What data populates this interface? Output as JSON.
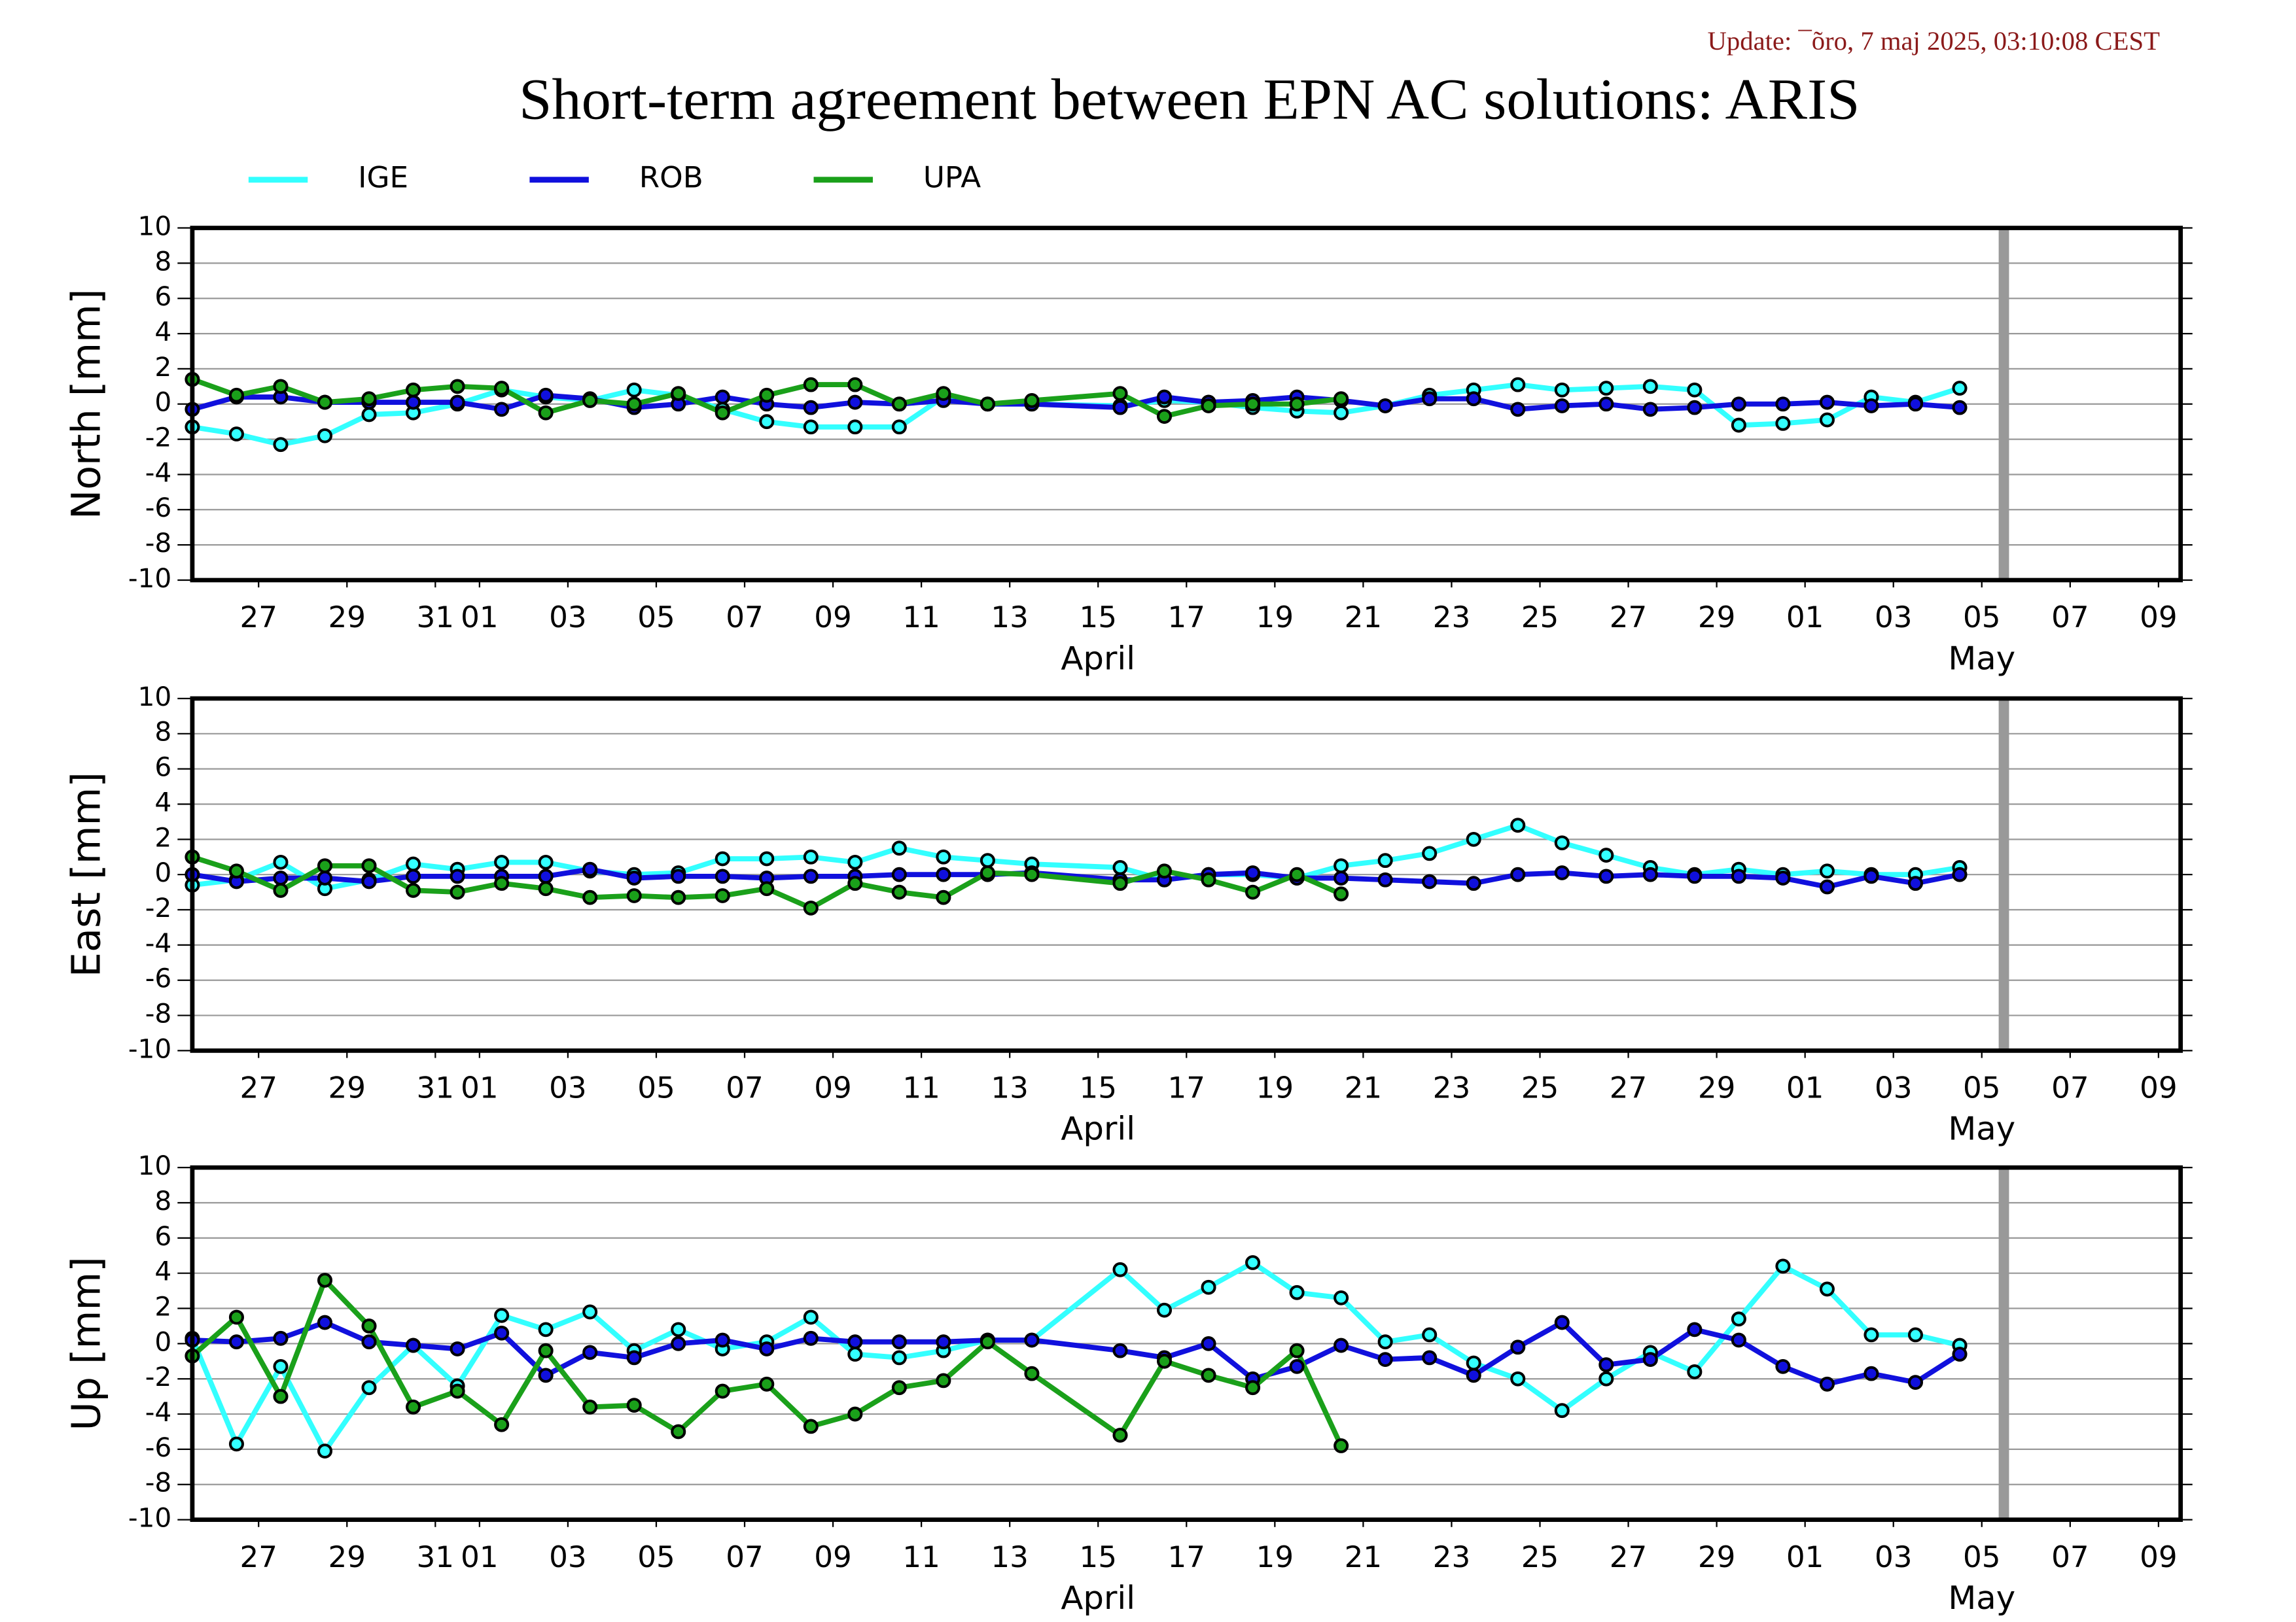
{
  "update": "Update: ¯õro, 7 maj 2025, 03:10:08 CEST",
  "title": "Short-term agreement between EPN AC solutions: ARIS",
  "chart_data": [
    {
      "type": "line",
      "y_label": "North [mm]",
      "x": [
        "03-26",
        "03-27",
        "03-28",
        "03-29",
        "03-30",
        "03-31",
        "04-01",
        "04-02",
        "04-03",
        "04-04",
        "04-05",
        "04-06",
        "04-07",
        "04-08",
        "04-09",
        "04-10",
        "04-11",
        "04-12",
        "04-13",
        "04-14",
        "04-16",
        "04-17",
        "04-18",
        "04-19",
        "04-20",
        "04-21",
        "04-22",
        "04-23",
        "04-24",
        "04-25",
        "04-26",
        "04-27",
        "04-28",
        "04-29",
        "04-30",
        "05-01",
        "05-02",
        "05-03",
        "05-04",
        "05-05"
      ],
      "series": [
        {
          "name": "IGE",
          "color": "#33ffff",
          "values": [
            -1.3,
            -1.7,
            -2.3,
            -1.8,
            -0.6,
            -0.5,
            0.0,
            0.8,
            0.4,
            0.2,
            0.8,
            0.5,
            -0.3,
            -1.0,
            -1.3,
            -1.3,
            -1.3,
            0.4,
            0.0,
            0.0,
            -0.1,
            0.2,
            0.1,
            -0.2,
            -0.4,
            -0.5,
            -0.1,
            0.5,
            0.8,
            1.1,
            0.8,
            0.9,
            1.0,
            0.8,
            -1.2,
            -1.1,
            -0.9,
            0.4,
            0.1,
            0.9
          ]
        },
        {
          "name": "ROB",
          "color": "#1010dd",
          "values": [
            -0.3,
            0.4,
            0.4,
            0.1,
            0.1,
            0.1,
            0.1,
            -0.3,
            0.5,
            0.3,
            -0.2,
            0.0,
            0.4,
            0.0,
            -0.2,
            0.1,
            0.0,
            0.2,
            0.0,
            0.0,
            -0.2,
            0.4,
            0.1,
            0.2,
            0.4,
            0.2,
            -0.1,
            0.3,
            0.3,
            -0.3,
            -0.1,
            0.0,
            -0.3,
            -0.2,
            0.0,
            0.0,
            0.1,
            -0.1,
            0.0,
            -0.2
          ]
        },
        {
          "name": "UPA",
          "color": "#1aa01a",
          "values": [
            1.4,
            0.5,
            1.0,
            0.1,
            0.3,
            0.8,
            1.0,
            0.9,
            -0.5,
            0.2,
            0.0,
            0.6,
            -0.5,
            0.5,
            1.1,
            1.1,
            0.0,
            0.6,
            0.0,
            0.2,
            0.6,
            -0.7,
            -0.1,
            0.0,
            0.0,
            0.3,
            null,
            null,
            null,
            null,
            null,
            null,
            null,
            null,
            null,
            null,
            null,
            null,
            null,
            null
          ]
        }
      ],
      "xlim": [
        "03-26",
        "05-10"
      ],
      "xticks": [
        {
          "value": "03-27",
          "label": "27"
        },
        {
          "value": "03-29",
          "label": "29"
        },
        {
          "value": "03-31",
          "label": "31"
        },
        {
          "value": "04-01",
          "label": "01"
        },
        {
          "value": "04-03",
          "label": "03"
        },
        {
          "value": "04-05",
          "label": "05"
        },
        {
          "value": "04-07",
          "label": "07"
        },
        {
          "value": "04-09",
          "label": "09"
        },
        {
          "value": "04-11",
          "label": "11"
        },
        {
          "value": "04-13",
          "label": "13"
        },
        {
          "value": "04-15",
          "label": "15"
        },
        {
          "value": "04-17",
          "label": "17"
        },
        {
          "value": "04-19",
          "label": "19"
        },
        {
          "value": "04-21",
          "label": "21"
        },
        {
          "value": "04-23",
          "label": "23"
        },
        {
          "value": "04-25",
          "label": "25"
        },
        {
          "value": "04-27",
          "label": "27"
        },
        {
          "value": "04-29",
          "label": "29"
        },
        {
          "value": "05-01",
          "label": "01"
        },
        {
          "value": "05-03",
          "label": "03"
        },
        {
          "value": "05-05",
          "label": "05"
        },
        {
          "value": "05-07",
          "label": "07"
        },
        {
          "value": "05-09",
          "label": "09"
        }
      ],
      "month_labels": [
        {
          "value": "04-15",
          "label": "April"
        },
        {
          "value": "05-05",
          "label": "May"
        }
      ],
      "marker_x": "05-06",
      "ylim": [
        -10,
        10
      ],
      "yticks": [
        -10,
        -8,
        -6,
        -4,
        -2,
        0,
        2,
        4,
        6,
        8,
        10
      ],
      "grid": true
    },
    {
      "type": "line",
      "y_label": "East [mm]",
      "x": [
        "03-26",
        "03-27",
        "03-28",
        "03-29",
        "03-30",
        "03-31",
        "04-01",
        "04-02",
        "04-03",
        "04-04",
        "04-05",
        "04-06",
        "04-07",
        "04-08",
        "04-09",
        "04-10",
        "04-11",
        "04-12",
        "04-13",
        "04-14",
        "04-16",
        "04-17",
        "04-18",
        "04-19",
        "04-20",
        "04-21",
        "04-22",
        "04-23",
        "04-24",
        "04-25",
        "04-26",
        "04-27",
        "04-28",
        "04-29",
        "04-30",
        "05-01",
        "05-02",
        "05-03",
        "05-04",
        "05-05"
      ],
      "series": [
        {
          "name": "IGE",
          "color": "#33ffff",
          "values": [
            -0.6,
            -0.3,
            0.7,
            -0.8,
            -0.3,
            0.6,
            0.3,
            0.7,
            0.7,
            0.2,
            0.0,
            0.1,
            0.9,
            0.9,
            1.0,
            0.7,
            1.5,
            1.0,
            0.8,
            0.6,
            0.4,
            -0.3,
            0.0,
            0.0,
            -0.2,
            0.5,
            0.8,
            1.2,
            2.0,
            2.8,
            1.8,
            1.1,
            0.4,
            0.0,
            0.3,
            0.0,
            0.2,
            0.0,
            0.0,
            0.4
          ]
        },
        {
          "name": "ROB",
          "color": "#1010dd",
          "values": [
            0.0,
            -0.4,
            -0.2,
            -0.2,
            -0.4,
            -0.1,
            -0.1,
            -0.1,
            -0.1,
            0.3,
            -0.2,
            -0.1,
            -0.1,
            -0.2,
            -0.1,
            -0.1,
            0.0,
            0.0,
            0.0,
            0.1,
            -0.3,
            -0.3,
            0.0,
            0.1,
            -0.2,
            -0.2,
            -0.3,
            -0.4,
            -0.5,
            0.0,
            0.1,
            -0.1,
            0.0,
            -0.1,
            -0.1,
            -0.2,
            -0.7,
            -0.1,
            -0.5,
            0.0
          ]
        },
        {
          "name": "UPA",
          "color": "#1aa01a",
          "values": [
            1.0,
            0.2,
            -0.9,
            0.5,
            0.5,
            -0.9,
            -1.0,
            -0.5,
            -0.8,
            -1.3,
            -1.2,
            -1.3,
            -1.2,
            -0.8,
            -1.9,
            -0.5,
            -1.0,
            -1.3,
            0.1,
            0.0,
            -0.5,
            0.2,
            -0.3,
            -1.0,
            0.0,
            -1.1,
            null,
            null,
            null,
            null,
            null,
            null,
            null,
            null,
            null,
            null,
            null,
            null,
            null,
            null
          ]
        }
      ],
      "xlim": [
        "03-26",
        "05-10"
      ],
      "xticks": [
        {
          "value": "03-27",
          "label": "27"
        },
        {
          "value": "03-29",
          "label": "29"
        },
        {
          "value": "03-31",
          "label": "31"
        },
        {
          "value": "04-01",
          "label": "01"
        },
        {
          "value": "04-03",
          "label": "03"
        },
        {
          "value": "04-05",
          "label": "05"
        },
        {
          "value": "04-07",
          "label": "07"
        },
        {
          "value": "04-09",
          "label": "09"
        },
        {
          "value": "04-11",
          "label": "11"
        },
        {
          "value": "04-13",
          "label": "13"
        },
        {
          "value": "04-15",
          "label": "15"
        },
        {
          "value": "04-17",
          "label": "17"
        },
        {
          "value": "04-19",
          "label": "19"
        },
        {
          "value": "04-21",
          "label": "21"
        },
        {
          "value": "04-23",
          "label": "23"
        },
        {
          "value": "04-25",
          "label": "25"
        },
        {
          "value": "04-27",
          "label": "27"
        },
        {
          "value": "04-29",
          "label": "29"
        },
        {
          "value": "05-01",
          "label": "01"
        },
        {
          "value": "05-03",
          "label": "03"
        },
        {
          "value": "05-05",
          "label": "05"
        },
        {
          "value": "05-07",
          "label": "07"
        },
        {
          "value": "05-09",
          "label": "09"
        }
      ],
      "month_labels": [
        {
          "value": "04-15",
          "label": "April"
        },
        {
          "value": "05-05",
          "label": "May"
        }
      ],
      "marker_x": "05-06",
      "ylim": [
        -10,
        10
      ],
      "yticks": [
        -10,
        -8,
        -6,
        -4,
        -2,
        0,
        2,
        4,
        6,
        8,
        10
      ],
      "grid": true
    },
    {
      "type": "line",
      "y_label": "Up [mm]",
      "x": [
        "03-26",
        "03-27",
        "03-28",
        "03-29",
        "03-30",
        "03-31",
        "04-01",
        "04-02",
        "04-03",
        "04-04",
        "04-05",
        "04-06",
        "04-07",
        "04-08",
        "04-09",
        "04-10",
        "04-11",
        "04-12",
        "04-13",
        "04-14",
        "04-16",
        "04-17",
        "04-18",
        "04-19",
        "04-20",
        "04-21",
        "04-22",
        "04-23",
        "04-24",
        "04-25",
        "04-26",
        "04-27",
        "04-28",
        "04-29",
        "04-30",
        "05-01",
        "05-02",
        "05-03",
        "05-04",
        "05-05"
      ],
      "series": [
        {
          "name": "IGE",
          "color": "#33ffff",
          "values": [
            0.3,
            -5.7,
            -1.3,
            -6.1,
            -2.5,
            -0.1,
            -2.4,
            1.6,
            0.8,
            1.8,
            -0.4,
            0.8,
            -0.3,
            0.1,
            1.5,
            -0.6,
            -0.8,
            -0.4,
            0.2,
            0.2,
            4.2,
            1.9,
            3.2,
            4.6,
            2.9,
            2.6,
            0.1,
            0.5,
            -1.1,
            -2.0,
            -3.8,
            -2.0,
            -0.5,
            -1.6,
            1.4,
            4.4,
            3.1,
            0.5,
            0.5,
            -0.1
          ]
        },
        {
          "name": "ROB",
          "color": "#1010dd",
          "values": [
            0.2,
            0.1,
            0.3,
            1.2,
            0.1,
            -0.1,
            -0.3,
            0.6,
            -1.8,
            -0.5,
            -0.8,
            0.0,
            0.2,
            -0.3,
            0.3,
            0.1,
            0.1,
            0.1,
            0.2,
            0.2,
            -0.4,
            -0.8,
            0.0,
            -2.0,
            -1.3,
            -0.1,
            -0.9,
            -0.8,
            -1.8,
            -0.2,
            1.2,
            -1.2,
            -0.9,
            0.8,
            0.2,
            -1.3,
            -2.3,
            -1.7,
            -2.2,
            -0.6
          ]
        },
        {
          "name": "UPA",
          "color": "#1aa01a",
          "values": [
            -0.7,
            1.5,
            -3.0,
            3.6,
            1.0,
            -3.6,
            -2.7,
            -4.6,
            -0.4,
            -3.6,
            -3.5,
            -5.0,
            -2.7,
            -2.3,
            -4.7,
            -4.0,
            -2.5,
            -2.1,
            0.1,
            -1.7,
            -5.2,
            -1.0,
            -1.8,
            -2.5,
            -0.4,
            -5.8,
            null,
            null,
            null,
            null,
            null,
            null,
            null,
            null,
            null,
            null,
            null,
            null,
            null,
            null
          ]
        }
      ],
      "xlim": [
        "03-26",
        "05-10"
      ],
      "xticks": [
        {
          "value": "03-27",
          "label": "27"
        },
        {
          "value": "03-29",
          "label": "29"
        },
        {
          "value": "03-31",
          "label": "31"
        },
        {
          "value": "04-01",
          "label": "01"
        },
        {
          "value": "04-03",
          "label": "03"
        },
        {
          "value": "04-05",
          "label": "05"
        },
        {
          "value": "04-07",
          "label": "07"
        },
        {
          "value": "04-09",
          "label": "09"
        },
        {
          "value": "04-11",
          "label": "11"
        },
        {
          "value": "04-13",
          "label": "13"
        },
        {
          "value": "04-15",
          "label": "15"
        },
        {
          "value": "04-17",
          "label": "17"
        },
        {
          "value": "04-19",
          "label": "19"
        },
        {
          "value": "04-21",
          "label": "21"
        },
        {
          "value": "04-23",
          "label": "23"
        },
        {
          "value": "04-25",
          "label": "25"
        },
        {
          "value": "04-27",
          "label": "27"
        },
        {
          "value": "04-29",
          "label": "29"
        },
        {
          "value": "05-01",
          "label": "01"
        },
        {
          "value": "05-03",
          "label": "03"
        },
        {
          "value": "05-05",
          "label": "05"
        },
        {
          "value": "05-07",
          "label": "07"
        },
        {
          "value": "05-09",
          "label": "09"
        }
      ],
      "month_labels": [
        {
          "value": "04-15",
          "label": "April"
        },
        {
          "value": "05-05",
          "label": "May"
        }
      ],
      "marker_x": "05-06",
      "ylim": [
        -10,
        10
      ],
      "yticks": [
        -10,
        -8,
        -6,
        -4,
        -2,
        0,
        2,
        4,
        6,
        8,
        10
      ],
      "grid": true
    }
  ]
}
